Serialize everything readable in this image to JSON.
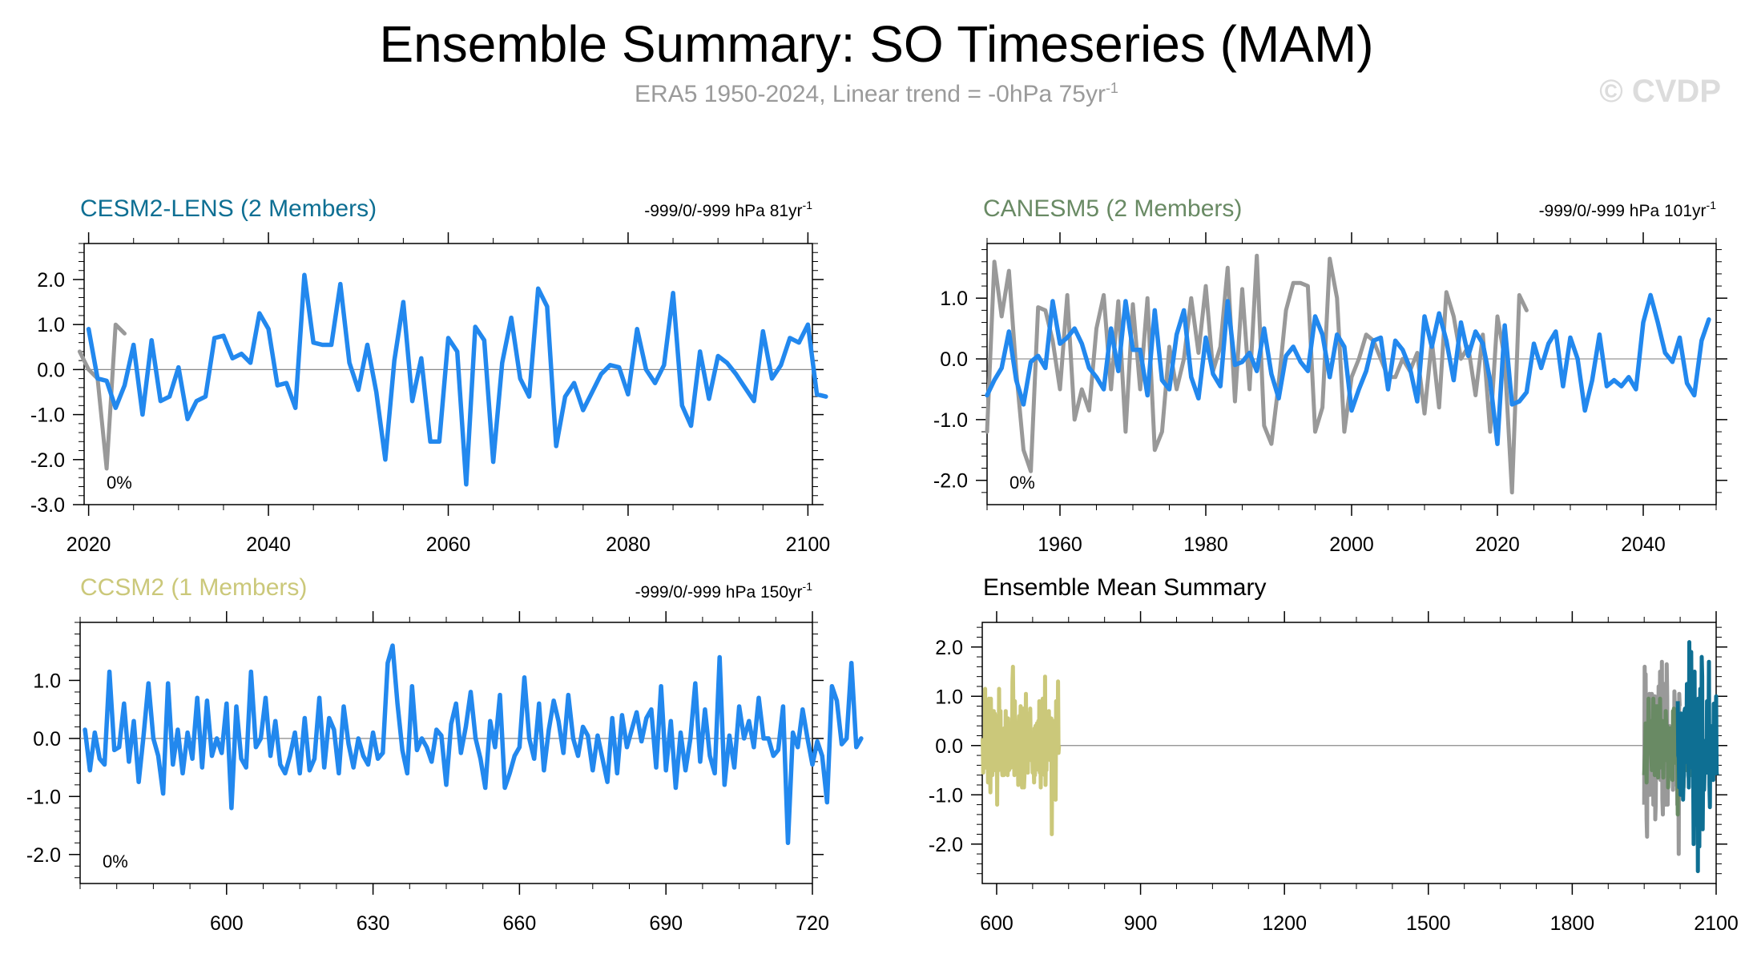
{
  "title": "Ensemble Summary: SO Timeseries (MAM)",
  "subtitle": "ERA5 1950-2024, Linear trend = -0hPa 75yr",
  "subtitle_sup": "-1",
  "watermark": "© CVDP",
  "colors": {
    "obs": "#999999",
    "series": "#2288ee",
    "cesm": "#0e6f93",
    "canesm": "#698a64",
    "ccsm": "#cbc87a"
  },
  "chart_data": [
    {
      "type": "line",
      "title": "CESM2-LENS (2 Members)",
      "title_color": "#0e6f93",
      "stats": "-999/0/-999 hPa 81yr",
      "stats_sup": "-1",
      "pct": "0%",
      "xlim": [
        2019.5,
        2100.5
      ],
      "ylim": [
        -3.0,
        2.8
      ],
      "xticks": [
        2020,
        2040,
        2060,
        2080,
        2100
      ],
      "xtick_labels": [
        "2020",
        "2040",
        "2060",
        "2080",
        "2100"
      ],
      "yticks": [
        2.0,
        1.0,
        0.0,
        -1.0,
        -2.0,
        -3.0
      ],
      "ytick_labels": [
        "2.0",
        "1.0",
        "0.0",
        "-1.0",
        "-2.0",
        "-3.0"
      ],
      "series": [
        {
          "name": "ERA5",
          "color": "#999999",
          "x_start": 2019,
          "values": [
            0.4,
            0.0,
            -0.2,
            -2.2,
            1.0,
            0.8
          ]
        },
        {
          "name": "ensemble",
          "color": "#2288ee",
          "x_start": 2020,
          "values": [
            0.9,
            -0.2,
            -0.25,
            -0.85,
            -0.35,
            0.55,
            -1.0,
            0.65,
            -0.7,
            -0.6,
            0.05,
            -1.1,
            -0.7,
            -0.6,
            0.7,
            0.75,
            0.25,
            0.35,
            0.15,
            1.25,
            0.9,
            -0.35,
            -0.3,
            -0.85,
            2.1,
            0.6,
            0.55,
            0.55,
            1.9,
            0.15,
            -0.45,
            0.55,
            -0.5,
            -2.0,
            0.2,
            1.5,
            -0.7,
            0.25,
            -1.6,
            -1.6,
            0.7,
            0.4,
            -2.55,
            0.95,
            0.65,
            -2.05,
            0.15,
            1.15,
            -0.2,
            -0.6,
            1.8,
            1.4,
            -1.7,
            -0.6,
            -0.3,
            -0.9,
            -0.5,
            -0.1,
            0.1,
            0.05,
            -0.55,
            0.9,
            0.0,
            -0.3,
            0.1,
            1.7,
            -0.8,
            -1.25,
            0.4,
            -0.65,
            0.3,
            0.15,
            -0.1,
            -0.4,
            -0.7,
            0.85,
            -0.2,
            0.1,
            0.7,
            0.6,
            1.0,
            -0.55,
            -0.6
          ]
        }
      ]
    },
    {
      "type": "line",
      "title": "CANESM5 (2 Members)",
      "title_color": "#698a64",
      "stats": "-999/0/-999 hPa 101yr",
      "stats_sup": "-1",
      "pct": "0%",
      "xlim": [
        1950,
        2050
      ],
      "ylim": [
        -2.4,
        1.9
      ],
      "xticks": [
        1960,
        1980,
        2000,
        2020,
        2040
      ],
      "xtick_labels": [
        "1960",
        "1980",
        "2000",
        "2020",
        "2040"
      ],
      "yticks": [
        1.0,
        0.0,
        -1.0,
        -2.0
      ],
      "ytick_labels": [
        "1.0",
        "0.0",
        "-1.0",
        "-2.0"
      ],
      "series": [
        {
          "name": "ERA5",
          "color": "#999999",
          "x_start": 1950,
          "values": [
            -1.2,
            1.6,
            0.7,
            1.45,
            -0.2,
            -1.5,
            -1.85,
            0.85,
            0.8,
            0.3,
            -0.5,
            1.05,
            -1.0,
            -0.5,
            -0.85,
            0.5,
            1.05,
            -0.5,
            0.95,
            -1.2,
            0.9,
            -0.5,
            1.0,
            -1.5,
            -1.2,
            0.2,
            -0.5,
            0.0,
            1.0,
            0.1,
            1.2,
            -0.2,
            0.2,
            1.5,
            -0.7,
            1.15,
            -0.5,
            1.7,
            -1.1,
            -1.4,
            -0.4,
            0.8,
            1.25,
            1.25,
            1.2,
            -1.2,
            -0.8,
            1.65,
            1.0,
            -1.2,
            -0.3,
            0.0,
            0.4,
            0.3,
            0.0,
            -0.3,
            -0.3,
            0.0,
            -0.2,
            0.1,
            -0.9,
            0.3,
            -0.8,
            1.1,
            0.7,
            0.0,
            0.2,
            -0.6,
            0.4,
            -1.2,
            0.7,
            0.0,
            -2.2,
            1.05,
            0.8
          ]
        },
        {
          "name": "ensemble",
          "color": "#2288ee",
          "x_start": 1950,
          "values": [
            -0.6,
            -0.35,
            -0.15,
            0.45,
            -0.35,
            -0.75,
            -0.05,
            0.05,
            -0.15,
            0.95,
            0.25,
            0.35,
            0.5,
            0.25,
            -0.15,
            -0.3,
            -0.5,
            0.5,
            -0.2,
            0.95,
            0.15,
            0.15,
            -0.6,
            0.8,
            -0.35,
            -0.5,
            0.4,
            0.8,
            -0.3,
            -0.65,
            0.35,
            -0.25,
            -0.45,
            0.95,
            -0.1,
            -0.05,
            0.1,
            -0.2,
            0.5,
            -0.25,
            -0.65,
            0.05,
            0.2,
            -0.05,
            -0.2,
            0.7,
            0.4,
            -0.3,
            0.4,
            0.2,
            -0.85,
            -0.5,
            -0.2,
            0.3,
            0.35,
            -0.5,
            0.3,
            0.15,
            -0.15,
            -0.7,
            0.7,
            0.2,
            0.75,
            0.3,
            -0.35,
            0.6,
            0.05,
            0.45,
            0.25,
            -0.35,
            -1.4,
            0.55,
            -0.75,
            -0.7,
            -0.55,
            0.25,
            -0.15,
            0.25,
            0.45,
            -0.45,
            0.35,
            0.0,
            -0.85,
            -0.35,
            0.4,
            -0.45,
            -0.35,
            -0.45,
            -0.3,
            -0.5,
            0.6,
            1.05,
            0.6,
            0.1,
            -0.05,
            0.35,
            -0.4,
            -0.6,
            0.3,
            0.65
          ]
        }
      ]
    },
    {
      "type": "line",
      "title": "CCSM2 (1 Members)",
      "title_color": "#cbc87a",
      "stats": "-999/0/-999 hPa 150yr",
      "stats_sup": "-1",
      "pct": "0%",
      "xlim": [
        570,
        720
      ],
      "ylim": [
        -2.5,
        2.0
      ],
      "xticks": [
        600,
        630,
        660,
        690,
        720
      ],
      "xtick_labels": [
        "600",
        "630",
        "660",
        "690",
        "720"
      ],
      "yticks": [
        1.0,
        0.0,
        -1.0,
        -2.0
      ],
      "ytick_labels": [
        "1.0",
        "0.0",
        "-1.0",
        "-2.0"
      ],
      "series": [
        {
          "name": "ensemble",
          "color": "#2288ee",
          "x_start": 571,
          "values": [
            0.15,
            -0.55,
            0.1,
            -0.35,
            -0.45,
            1.15,
            -0.2,
            -0.15,
            0.6,
            -0.4,
            0.3,
            -0.75,
            0.05,
            0.95,
            0.0,
            -0.3,
            -0.95,
            0.95,
            -0.45,
            0.15,
            -0.6,
            0.1,
            -0.35,
            0.7,
            -0.5,
            0.65,
            -0.3,
            0.0,
            -0.25,
            0.6,
            -1.2,
            0.55,
            -0.35,
            -0.5,
            1.15,
            -0.15,
            0.0,
            0.7,
            -0.3,
            0.3,
            -0.45,
            -0.6,
            -0.3,
            0.1,
            -0.6,
            0.35,
            -0.55,
            -0.35,
            0.7,
            -0.5,
            0.35,
            0.15,
            -0.6,
            0.55,
            -0.1,
            -0.5,
            0.0,
            -0.3,
            -0.45,
            0.1,
            -0.35,
            -0.25,
            1.3,
            1.6,
            0.6,
            -0.2,
            -0.6,
            0.9,
            -0.2,
            0.0,
            -0.15,
            -0.4,
            0.15,
            0.05,
            -0.8,
            0.25,
            0.6,
            -0.25,
            0.2,
            0.8,
            0.0,
            -0.35,
            -0.85,
            0.3,
            -0.15,
            0.75,
            -0.85,
            -0.6,
            -0.3,
            -0.15,
            1.05,
            0.0,
            -0.35,
            0.6,
            -0.55,
            0.15,
            0.65,
            0.3,
            -0.25,
            0.75,
            0.0,
            -0.3,
            0.2,
            0.05,
            -0.55,
            0.05,
            -0.35,
            -0.75,
            0.35,
            -0.6,
            0.4,
            -0.15,
            0.15,
            0.45,
            -0.05,
            0.35,
            0.5,
            -0.5,
            0.9,
            -0.55,
            0.3,
            -0.85,
            0.1,
            -0.55,
            0.0,
            0.95,
            -0.4,
            0.5,
            -0.3,
            -0.6,
            1.4,
            -0.8,
            0.05,
            -0.5,
            0.55,
            0.0,
            0.3,
            -0.15,
            0.7,
            0.0,
            0.0,
            -0.3,
            -0.2,
            0.55,
            -1.8,
            0.1,
            -0.15,
            0.5,
            0.0,
            -0.45,
            -0.05,
            -0.3,
            -1.1,
            0.9,
            0.65,
            -0.1,
            0.0,
            1.3,
            -0.15,
            0.0
          ]
        }
      ]
    },
    {
      "type": "line",
      "title": "Ensemble Mean Summary",
      "title_color": "#000000",
      "xlim": [
        570,
        2100
      ],
      "ylim": [
        -2.8,
        2.5
      ],
      "xticks": [
        600,
        900,
        1200,
        1500,
        1800,
        2100
      ],
      "xtick_labels": [
        "600",
        "900",
        "1200",
        "1500",
        "1800",
        "2100"
      ],
      "yticks": [
        2.0,
        1.0,
        0.0,
        -1.0,
        -2.0
      ],
      "ytick_labels": [
        "2.0",
        "1.0",
        "0.0",
        "-1.0",
        "-2.0"
      ],
      "series": [
        {
          "name": "CCSM2",
          "color": "#cbc87a",
          "x_start": 571,
          "x_end": 720,
          "panel_ref": 2
        },
        {
          "name": "ERA5",
          "color": "#999999",
          "x_start": 1950,
          "x_end": 2024,
          "panel_ref": 1,
          "series_ref": 0
        },
        {
          "name": "CANESM5",
          "color": "#698a64",
          "x_start": 1950,
          "x_end": 2050,
          "panel_ref": 1,
          "series_ref": 1
        },
        {
          "name": "CESM2-LENS",
          "color": "#0e6f93",
          "x_start": 2020,
          "x_end": 2100,
          "panel_ref": 0,
          "series_ref": 1
        }
      ]
    }
  ]
}
